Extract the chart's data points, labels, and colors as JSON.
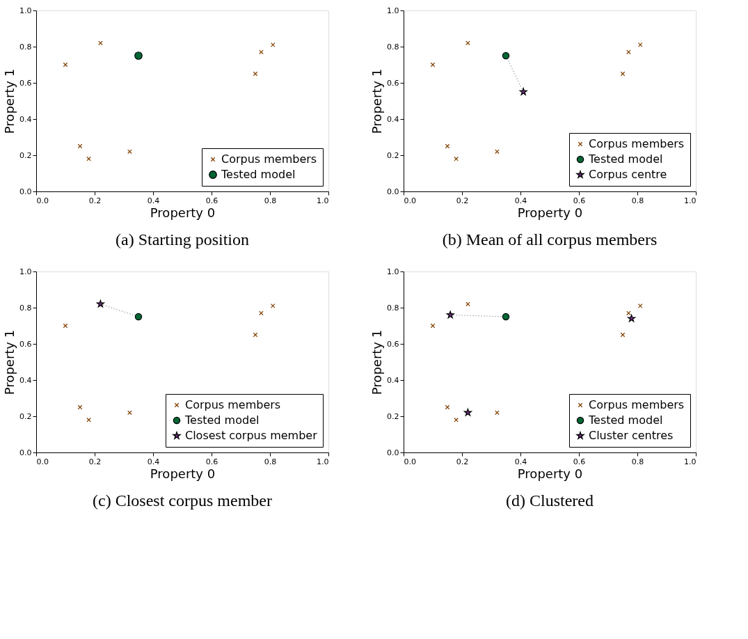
{
  "chart_data": [
    {
      "type": "scatter",
      "title": "(a) Starting position",
      "xlabel": "Property 0",
      "ylabel": "Property 1",
      "xlim": [
        0,
        1
      ],
      "ylim": [
        0,
        1
      ],
      "xticks": [
        {
          "value": 0,
          "label": "0.0"
        },
        {
          "value": 0.2,
          "label": "0.2"
        },
        {
          "value": 0.4,
          "label": "0.4"
        },
        {
          "value": 0.6,
          "label": "0.6"
        },
        {
          "value": 0.8,
          "label": "0.8"
        },
        {
          "value": 1,
          "label": "1.0"
        }
      ],
      "yticks": [
        {
          "value": 0,
          "label": "0.0"
        },
        {
          "value": 0.2,
          "label": "0.2"
        },
        {
          "value": 0.4,
          "label": "0.4"
        },
        {
          "value": 0.6,
          "label": "0.6"
        },
        {
          "value": 0.8,
          "label": "0.8"
        },
        {
          "value": 1,
          "label": "1.0"
        }
      ],
      "grid": false,
      "legend": "bottom right",
      "series": [
        {
          "name": "Corpus members",
          "type": "scatter",
          "marker": "cross",
          "color": "#7f3f00",
          "x": [
            0.1,
            0.15,
            0.18,
            0.22,
            0.32,
            0.75,
            0.77,
            0.81
          ],
          "values": [
            0.7,
            0.25,
            0.18,
            0.82,
            0.22,
            0.65,
            0.77,
            0.81
          ]
        },
        {
          "name": "Tested model",
          "type": "scatter",
          "marker": "circle",
          "color": "#006633",
          "x": [
            0.35
          ],
          "values": [
            0.75
          ]
        }
      ]
    },
    {
      "type": "scatter",
      "title": "(b) Mean of all corpus members",
      "xlabel": "Property 0",
      "ylabel": "Property 1",
      "xlim": [
        0,
        1
      ],
      "ylim": [
        0,
        1
      ],
      "xticks": [
        {
          "value": 0,
          "label": "0.0"
        },
        {
          "value": 0.2,
          "label": "0.2"
        },
        {
          "value": 0.4,
          "label": "0.4"
        },
        {
          "value": 0.6,
          "label": "0.6"
        },
        {
          "value": 0.8,
          "label": "0.8"
        },
        {
          "value": 1,
          "label": "1.0"
        }
      ],
      "yticks": [
        {
          "value": 0,
          "label": "0.0"
        },
        {
          "value": 0.2,
          "label": "0.2"
        },
        {
          "value": 0.4,
          "label": "0.4"
        },
        {
          "value": 0.6,
          "label": "0.6"
        },
        {
          "value": 0.8,
          "label": "0.8"
        },
        {
          "value": 1,
          "label": "1.0"
        }
      ],
      "grid": false,
      "legend": "bottom right",
      "series": [
        {
          "type": "line",
          "line_style": "dotted",
          "color": "#aaaaaa",
          "x": [
            0.35,
            0.41
          ],
          "values": [
            0.75,
            0.55
          ]
        },
        {
          "name": "Corpus members",
          "type": "scatter",
          "marker": "cross",
          "color": "#7f3f00",
          "x": [
            0.1,
            0.15,
            0.18,
            0.22,
            0.32,
            0.75,
            0.77,
            0.81
          ],
          "values": [
            0.7,
            0.25,
            0.18,
            0.82,
            0.22,
            0.65,
            0.77,
            0.81
          ]
        },
        {
          "name": "Tested model",
          "type": "scatter",
          "marker": "circle",
          "color": "#006633",
          "x": [
            0.35
          ],
          "values": [
            0.75
          ]
        },
        {
          "name": "Corpus centre",
          "type": "scatter",
          "marker": "star",
          "color": "#6d2c80",
          "x": [
            0.41
          ],
          "values": [
            0.55
          ]
        }
      ]
    },
    {
      "type": "scatter",
      "title": "(c) Closest corpus member",
      "xlabel": "Property 0",
      "ylabel": "Property 1",
      "xlim": [
        0,
        1
      ],
      "ylim": [
        0,
        1
      ],
      "xticks": [
        {
          "value": 0,
          "label": "0.0"
        },
        {
          "value": 0.2,
          "label": "0.2"
        },
        {
          "value": 0.4,
          "label": "0.4"
        },
        {
          "value": 0.6,
          "label": "0.6"
        },
        {
          "value": 0.8,
          "label": "0.8"
        },
        {
          "value": 1,
          "label": "1.0"
        }
      ],
      "yticks": [
        {
          "value": 0,
          "label": "0.0"
        },
        {
          "value": 0.2,
          "label": "0.2"
        },
        {
          "value": 0.4,
          "label": "0.4"
        },
        {
          "value": 0.6,
          "label": "0.6"
        },
        {
          "value": 0.8,
          "label": "0.8"
        },
        {
          "value": 1,
          "label": "1.0"
        }
      ],
      "grid": false,
      "legend": "bottom right",
      "series": [
        {
          "type": "line",
          "line_style": "dotted",
          "color": "#aaaaaa",
          "x": [
            0.22,
            0.35
          ],
          "values": [
            0.82,
            0.75
          ]
        },
        {
          "name": "Corpus members",
          "type": "scatter",
          "marker": "cross",
          "color": "#7f3f00",
          "x": [
            0.1,
            0.15,
            0.18,
            0.32,
            0.75,
            0.77,
            0.81
          ],
          "values": [
            0.7,
            0.25,
            0.18,
            0.22,
            0.65,
            0.77,
            0.81
          ]
        },
        {
          "name": "Tested model",
          "type": "scatter",
          "marker": "circle",
          "color": "#006633",
          "x": [
            0.35
          ],
          "values": [
            0.75
          ]
        },
        {
          "name": "Closest corpus member",
          "type": "scatter",
          "marker": "star",
          "color": "#6d2c80",
          "x": [
            0.22
          ],
          "values": [
            0.82
          ]
        }
      ]
    },
    {
      "type": "scatter",
      "title": "(d) Clustered",
      "xlabel": "Property 0",
      "ylabel": "Property 1",
      "xlim": [
        0,
        1
      ],
      "ylim": [
        0,
        1
      ],
      "xticks": [
        {
          "value": 0,
          "label": "0.0"
        },
        {
          "value": 0.2,
          "label": "0.2"
        },
        {
          "value": 0.4,
          "label": "0.4"
        },
        {
          "value": 0.6,
          "label": "0.6"
        },
        {
          "value": 0.8,
          "label": "0.8"
        },
        {
          "value": 1,
          "label": "1.0"
        }
      ],
      "yticks": [
        {
          "value": 0,
          "label": "0.0"
        },
        {
          "value": 0.2,
          "label": "0.2"
        },
        {
          "value": 0.4,
          "label": "0.4"
        },
        {
          "value": 0.6,
          "label": "0.6"
        },
        {
          "value": 0.8,
          "label": "0.8"
        },
        {
          "value": 1,
          "label": "1.0"
        }
      ],
      "grid": false,
      "legend": "bottom right",
      "series": [
        {
          "type": "line",
          "line_style": "dotted",
          "color": "#aaaaaa",
          "x": [
            0.16,
            0.35
          ],
          "values": [
            0.76,
            0.75
          ]
        },
        {
          "name": "Corpus members",
          "type": "scatter",
          "marker": "cross",
          "color": "#7f3f00",
          "x": [
            0.1,
            0.15,
            0.18,
            0.22,
            0.32,
            0.75,
            0.77,
            0.81
          ],
          "values": [
            0.7,
            0.25,
            0.18,
            0.82,
            0.22,
            0.65,
            0.77,
            0.81
          ]
        },
        {
          "name": "Tested model",
          "type": "scatter",
          "marker": "circle",
          "color": "#006633",
          "x": [
            0.35
          ],
          "values": [
            0.75
          ]
        },
        {
          "name": "Cluster centres",
          "type": "scatter",
          "marker": "star",
          "color": "#6d2c80",
          "x": [
            0.16,
            0.78,
            0.22
          ],
          "values": [
            0.76,
            0.74,
            0.22
          ]
        }
      ]
    }
  ]
}
